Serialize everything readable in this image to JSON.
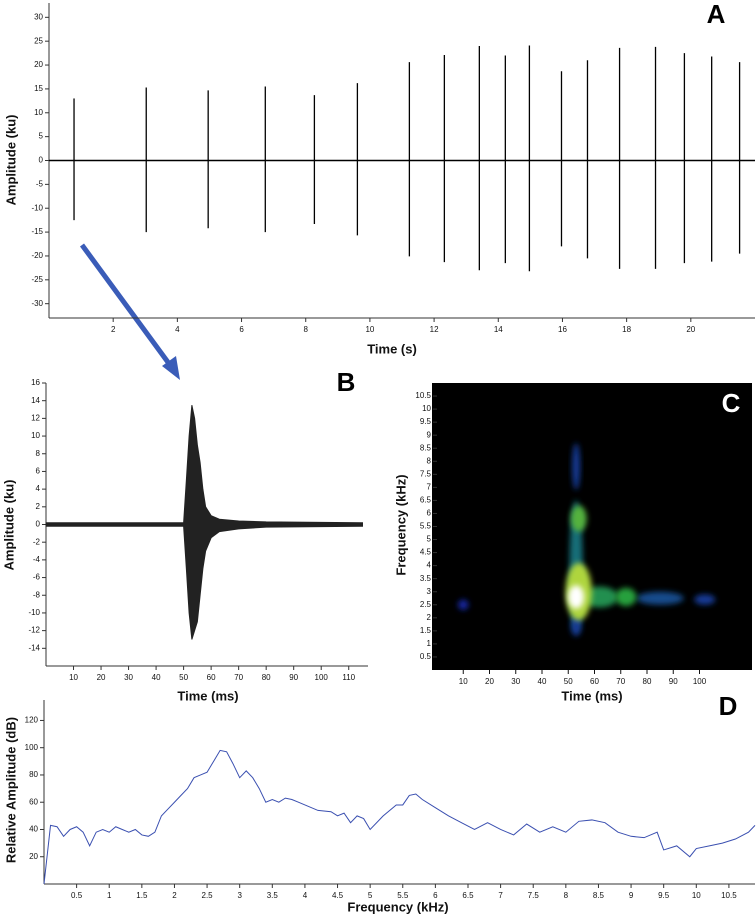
{
  "chart_data": [
    {
      "type": "spikes",
      "panel_label": "A",
      "x_label": "Time (s)",
      "y_label": "Amplitude (ku)",
      "xlim": [
        0,
        22
      ],
      "ylim": [
        -33,
        33
      ],
      "xticks": [
        2,
        4,
        6,
        8,
        10,
        12,
        14,
        16,
        18,
        20
      ],
      "yticks": [
        -30,
        -25,
        -20,
        -15,
        -10,
        -5,
        0,
        5,
        10,
        15,
        20,
        25,
        30
      ],
      "color": "#000000",
      "x": [
        0.78,
        3.03,
        4.96,
        6.74,
        8.27,
        9.61,
        11.23,
        12.32,
        13.41,
        14.22,
        14.97,
        15.97,
        16.78,
        17.78,
        18.9,
        19.8,
        20.65,
        21.52
      ],
      "upper": [
        13,
        15.3,
        14.7,
        15.5,
        13.7,
        16.2,
        20.6,
        22.1,
        24,
        22,
        24.1,
        18.7,
        21,
        23.6,
        23.8,
        22.5,
        21.8,
        20.6
      ],
      "lower": [
        -12.5,
        -15,
        -14.2,
        -15,
        -13.3,
        -15.7,
        -20.1,
        -21.3,
        -23,
        -21.5,
        -23.2,
        -18,
        -20.5,
        -22.7,
        -22.7,
        -21.5,
        -21.2,
        -19.5
      ]
    },
    {
      "type": "envelope",
      "panel_label": "B",
      "x_label": "Time (ms)",
      "y_label": "Amplitude (ku)",
      "xlim": [
        0,
        117
      ],
      "ylim": [
        -16,
        16
      ],
      "xticks": [
        10,
        20,
        30,
        40,
        50,
        60,
        70,
        80,
        90,
        100,
        110
      ],
      "yticks": [
        -14,
        -12,
        -10,
        -8,
        -6,
        -4,
        -2,
        0,
        2,
        4,
        6,
        8,
        10,
        12,
        14,
        16
      ],
      "color": "#222222",
      "x": [
        0,
        50,
        51,
        52,
        53,
        54,
        55,
        56,
        57,
        58,
        60,
        63,
        70,
        80,
        115
      ],
      "upper": [
        0.2,
        0.2,
        5,
        10,
        13.5,
        12,
        9,
        7,
        4,
        2,
        1,
        0.6,
        0.4,
        0.3,
        0.2
      ],
      "lower": [
        -0.2,
        -0.2,
        -5,
        -10,
        -13,
        -12,
        -11,
        -8,
        -5,
        -3,
        -1.5,
        -0.8,
        -0.5,
        -0.3,
        -0.2
      ]
    },
    {
      "type": "heatmap",
      "panel_label": "C",
      "x_label": "Time (ms)",
      "y_label": "Frequency (kHz)",
      "xlim": [
        0,
        120
      ],
      "ylim": [
        0,
        11
      ],
      "xticks": [
        10,
        20,
        30,
        40,
        50,
        60,
        70,
        80,
        90,
        100
      ],
      "yticks": [
        0.5,
        1,
        1.5,
        2,
        2.5,
        3,
        3.5,
        4,
        4.5,
        5,
        5.5,
        6,
        6.5,
        7,
        7.5,
        8,
        8.5,
        9,
        9.5,
        10,
        10.5
      ],
      "blobs": [
        {
          "x": 53,
          "y": 4.0,
          "w": 5,
          "h": 5,
          "level": 0.45
        },
        {
          "x": 53,
          "y": 7.8,
          "w": 3,
          "h": 1.8,
          "level": 0.3
        },
        {
          "x": 53,
          "y": 1.7,
          "w": 4,
          "h": 0.8,
          "level": 0.3
        },
        {
          "x": 85,
          "y": 2.75,
          "w": 18,
          "h": 0.5,
          "level": 0.35
        },
        {
          "x": 102,
          "y": 2.7,
          "w": 8,
          "h": 0.4,
          "level": 0.3
        },
        {
          "x": 10,
          "y": 2.5,
          "w": 4,
          "h": 0.4,
          "level": 0.25
        },
        {
          "x": 62,
          "y": 2.8,
          "w": 14,
          "h": 0.8,
          "level": 0.55
        },
        {
          "x": 72,
          "y": 2.8,
          "w": 8,
          "h": 0.7,
          "level": 0.6
        },
        {
          "x": 54,
          "y": 5.8,
          "w": 6,
          "h": 1,
          "level": 0.65
        },
        {
          "x": 54,
          "y": 3.0,
          "w": 10,
          "h": 2.2,
          "level": 0.75
        },
        {
          "x": 53,
          "y": 2.8,
          "w": 6,
          "h": 0.9,
          "level": 1.0
        }
      ]
    },
    {
      "type": "line",
      "panel_label": "D",
      "x_label": "Frequency (kHz)",
      "y_label": "Relative Amplitude (dB)",
      "xlim": [
        0,
        10.9
      ],
      "ylim": [
        0,
        135
      ],
      "xticks": [
        0.5,
        1,
        1.5,
        2,
        2.5,
        3,
        3.5,
        4,
        4.5,
        5,
        5.5,
        6,
        6.5,
        7,
        7.5,
        8,
        8.5,
        9,
        9.5,
        10,
        10.5
      ],
      "yticks": [
        20,
        40,
        60,
        80,
        100,
        120
      ],
      "color": "#3a4fb0",
      "x": [
        0,
        0.1,
        0.2,
        0.3,
        0.4,
        0.5,
        0.6,
        0.7,
        0.8,
        0.9,
        1.0,
        1.1,
        1.2,
        1.3,
        1.4,
        1.5,
        1.6,
        1.7,
        1.8,
        1.9,
        2.0,
        2.1,
        2.2,
        2.3,
        2.4,
        2.5,
        2.6,
        2.7,
        2.8,
        2.9,
        3.0,
        3.1,
        3.2,
        3.3,
        3.4,
        3.5,
        3.6,
        3.7,
        3.8,
        3.9,
        4.0,
        4.2,
        4.4,
        4.5,
        4.6,
        4.7,
        4.8,
        4.9,
        5.0,
        5.2,
        5.4,
        5.5,
        5.6,
        5.7,
        5.8,
        6.0,
        6.2,
        6.4,
        6.6,
        6.8,
        7.0,
        7.2,
        7.4,
        7.6,
        7.8,
        8.0,
        8.2,
        8.4,
        8.6,
        8.8,
        9.0,
        9.2,
        9.4,
        9.5,
        9.7,
        9.9,
        10.0,
        10.2,
        10.4,
        10.6,
        10.8,
        10.9
      ],
      "values": [
        0,
        43,
        42,
        35,
        40,
        42,
        38,
        28,
        38,
        40,
        38,
        42,
        40,
        38,
        40,
        36,
        35,
        38,
        50,
        55,
        60,
        65,
        70,
        78,
        80,
        82,
        90,
        98,
        97,
        88,
        78,
        83,
        78,
        70,
        60,
        62,
        60,
        63,
        62,
        60,
        58,
        54,
        53,
        50,
        52,
        45,
        50,
        48,
        40,
        50,
        58,
        58,
        65,
        66,
        62,
        56,
        50,
        45,
        40,
        45,
        40,
        36,
        44,
        38,
        42,
        38,
        46,
        47,
        45,
        38,
        35,
        34,
        38,
        25,
        28,
        20,
        26,
        28,
        30,
        33,
        38,
        43
      ]
    }
  ]
}
